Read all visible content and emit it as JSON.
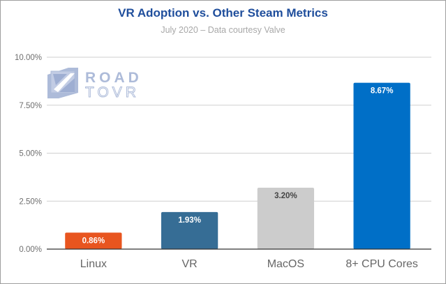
{
  "chart_data": {
    "type": "bar",
    "title": "VR Adoption vs. Other Steam Metrics",
    "subtitle": "July 2020 – Data courtesy Valve",
    "xlabel": "",
    "ylabel": "",
    "categories": [
      "Linux",
      "VR",
      "MacOS",
      "8+ CPU Cores"
    ],
    "values": [
      0.86,
      1.93,
      3.2,
      8.67
    ],
    "data_labels": [
      "0.86%",
      "1.93%",
      "3.20%",
      "8.67%"
    ],
    "colors": [
      "#e8551f",
      "#366d95",
      "#cccccc",
      "#006fc7"
    ],
    "label_colors": [
      "#ffffff",
      "#ffffff",
      "#444444",
      "#ffffff"
    ],
    "ylim": [
      0,
      10
    ],
    "yticks": [
      0,
      2.5,
      5,
      7.5,
      10
    ],
    "ytick_labels": [
      "0.00%",
      "2.50%",
      "5.00%",
      "7.50%",
      "10.00%"
    ],
    "grid": true,
    "legend": "none"
  },
  "watermark": {
    "line1": "ROAD",
    "line2": "TOVR"
  }
}
